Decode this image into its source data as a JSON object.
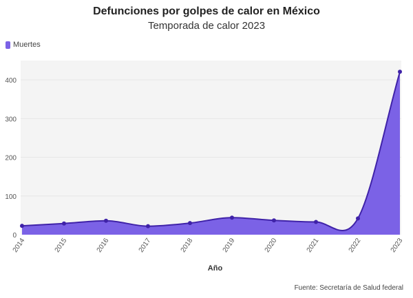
{
  "header": {
    "title": "Defunciones por golpes de calor en México",
    "subtitle": "Temporada de calor 2023"
  },
  "legend": {
    "label": "Muertes"
  },
  "source": "Fuente: Secretaría de Salud federal",
  "colors": {
    "fill": "#7b62e6",
    "line": "#3f22a8",
    "grid": "#e6e6e6",
    "plot_bg": "#f4f4f4"
  },
  "chart_data": {
    "type": "area",
    "title": "Defunciones por golpes de calor en México",
    "subtitle": "Temporada de calor 2023",
    "xlabel": "Año",
    "ylabel": "",
    "x": [
      "2014",
      "2015",
      "2016",
      "2017",
      "2018",
      "2019",
      "2020",
      "2021",
      "2022",
      "2023"
    ],
    "series": [
      {
        "name": "Muertes",
        "values": [
          23,
          29,
          36,
          22,
          30,
          44,
          37,
          33,
          42,
          421
        ]
      }
    ],
    "ylim": [
      0,
      450
    ],
    "yticks": [
      0,
      100,
      200,
      300,
      400
    ],
    "grid": true,
    "legend_position": "top-left"
  }
}
